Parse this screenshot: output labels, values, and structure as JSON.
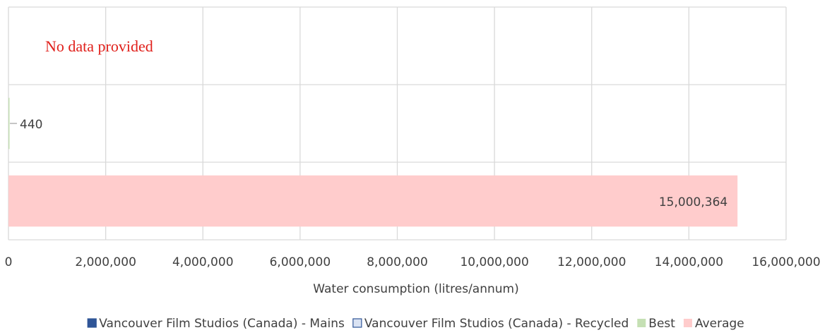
{
  "chart_data": {
    "type": "hbar",
    "annotation": "No data provided",
    "x_label": "Water consumption (litres/annum)",
    "categories": [
      null,
      null,
      null
    ],
    "series": [
      {
        "name": "Vancouver Film Studios (Canada) - Mains",
        "color": "#2f5597",
        "values": [
          null,
          null,
          null
        ]
      },
      {
        "name": "Vancouver Film Studios (Canada) - Recycled",
        "color": "#dae3f3",
        "values": [
          null,
          null,
          null
        ]
      },
      {
        "name": "Best",
        "color": "#c5e0b4",
        "values": [
          null,
          440,
          null
        ],
        "value_labels": [
          null,
          "440",
          null
        ]
      },
      {
        "name": "Average",
        "color": "#ffcccc",
        "values": [
          null,
          null,
          15000364
        ],
        "value_labels": [
          null,
          null,
          "15,000,364"
        ]
      }
    ],
    "xlim": [
      0,
      16000000
    ],
    "xticks": [
      0,
      {
        "value": 2000000,
        "label": "2,000,000"
      },
      {
        "value": 4000000,
        "label": "4,000,000"
      },
      {
        "value": 6000000,
        "label": "6,000,000"
      },
      {
        "value": 8000000,
        "label": "8,000,000"
      },
      {
        "value": 10000000,
        "label": "10,000,000"
      },
      {
        "value": 12000000,
        "label": "12,000,000"
      },
      {
        "value": 14000000,
        "label": "14,000,000"
      },
      {
        "value": 16000000,
        "label": "16,000,000"
      }
    ],
    "grid": true,
    "legend": "bottom"
  }
}
